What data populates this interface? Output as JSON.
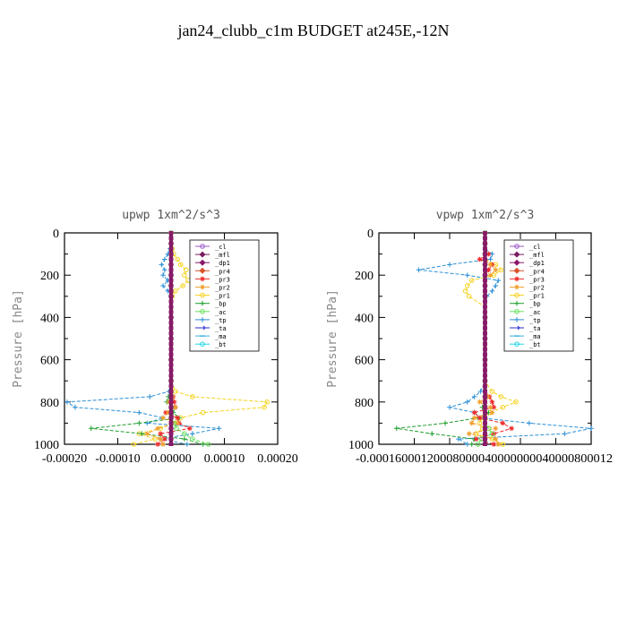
{
  "figure": {
    "title": "jan24_clubb_c1m  BUDGET at245E,-12N"
  },
  "legend_entries": [
    {
      "name": "_cl",
      "color": "#9b59c9",
      "marker": "circle"
    },
    {
      "name": "_mfl",
      "color": "#7b1f5e",
      "marker": "diamond"
    },
    {
      "name": "_dp1",
      "color": "#8b1a6b",
      "marker": "diamond"
    },
    {
      "name": "_pr4",
      "color": "#d9532b",
      "marker": "diamond"
    },
    {
      "name": "_pr3",
      "color": "#ee2b2b",
      "marker": "star"
    },
    {
      "name": "_pr2",
      "color": "#f0a030",
      "marker": "star"
    },
    {
      "name": "_pr1",
      "color": "#f5d21a",
      "marker": "circle"
    },
    {
      "name": "_bp",
      "color": "#1e9e2e",
      "marker": "plus"
    },
    {
      "name": "_ac",
      "color": "#66e05a",
      "marker": "circle"
    },
    {
      "name": "_tp",
      "color": "#2a8fd6",
      "marker": "plus"
    },
    {
      "name": "_ta",
      "color": "#2a2ad6",
      "marker": "arrow"
    },
    {
      "name": "_ma",
      "color": "#3ab0e0",
      "marker": "dash"
    },
    {
      "name": "_bt",
      "color": "#22d6e6",
      "marker": "circle"
    }
  ],
  "chart_data": [
    {
      "type": "line",
      "title": "upwp   1xm^2/s^3",
      "ylabel": "Pressure [hPa]",
      "xlabel": "",
      "xlim": [
        -0.0002,
        0.0002
      ],
      "ylim": [
        1000,
        0
      ],
      "xticks": [
        "-0.00020",
        "-0.00010",
        "0.00000",
        "0.00010",
        "0.00020"
      ],
      "yticks": [
        "0",
        "200",
        "400",
        "600",
        "800",
        "1000"
      ],
      "pressure_levels": [
        0,
        25,
        50,
        75,
        100,
        125,
        150,
        175,
        200,
        225,
        250,
        275,
        300,
        350,
        400,
        450,
        500,
        550,
        600,
        650,
        700,
        750,
        775,
        800,
        825,
        850,
        875,
        900,
        925,
        950,
        975,
        1000
      ],
      "series": [
        {
          "name": "_pr1",
          "values": [
            0,
            0,
            0,
            2e-06,
            5e-06,
            1.2e-05,
            1.8e-05,
            2.8e-05,
            2.5e-05,
            3.2e-05,
            2.2e-05,
            8e-06,
            2e-06,
            0,
            0,
            0,
            0,
            0,
            0,
            0,
            0,
            8e-06,
            4e-05,
            0.00018,
            0.000175,
            6e-05,
            1.8e-05,
            2e-06,
            -2e-05,
            -6e-05,
            -3e-05,
            -7e-05
          ]
        },
        {
          "name": "_tp",
          "values": [
            0,
            0,
            0,
            -2e-06,
            -6e-06,
            -1.2e-05,
            -1.8e-05,
            -1.2e-05,
            -1.5e-05,
            -6e-06,
            -1.5e-05,
            -6e-06,
            0,
            0,
            0,
            0,
            0,
            0,
            0,
            0,
            0,
            -4e-06,
            -4e-05,
            -0.000195,
            -0.00018,
            -6e-05,
            -1.5e-05,
            -4.5e-05,
            9e-05,
            4e-05,
            -2e-05,
            3e-05
          ]
        },
        {
          "name": "_bp",
          "values": [
            0,
            0,
            0,
            0,
            0,
            0,
            0,
            0,
            0,
            0,
            0,
            0,
            0,
            0,
            0,
            0,
            0,
            0,
            0,
            0,
            0,
            0,
            -5e-06,
            -8e-06,
            8e-06,
            4e-06,
            1.5e-05,
            -6e-05,
            -0.00015,
            -5.5e-05,
            2.5e-05,
            6e-05
          ]
        },
        {
          "name": "_pr3",
          "values": [
            0,
            0,
            0,
            0,
            0,
            0,
            0,
            0,
            0,
            0,
            0,
            0,
            0,
            0,
            0,
            0,
            0,
            0,
            0,
            0,
            0,
            0,
            4e-06,
            6e-06,
            8e-06,
            -1e-05,
            1.2e-05,
            1.5e-05,
            3.5e-05,
            -2e-05,
            -1.2e-05,
            -2.5e-05
          ]
        },
        {
          "name": "_pr2",
          "values": [
            0,
            0,
            0,
            0,
            0,
            0,
            0,
            0,
            0,
            0,
            0,
            0,
            0,
            0,
            0,
            0,
            0,
            0,
            0,
            0,
            0,
            0,
            3e-06,
            -4e-06,
            8e-06,
            -5e-06,
            -1.5e-05,
            1.2e-05,
            -2.5e-05,
            -4.5e-05,
            -2e-05,
            -1.5e-05
          ]
        },
        {
          "name": "_cl",
          "values": [
            0,
            0,
            0,
            0,
            0,
            0,
            0,
            0,
            0,
            0,
            0,
            0,
            0,
            0,
            0,
            0,
            0,
            0,
            0,
            0,
            0,
            0,
            0,
            0,
            0,
            0,
            0,
            0,
            0,
            0,
            0,
            0
          ]
        },
        {
          "name": "_ac",
          "values": [
            0,
            0,
            0,
            0,
            0,
            0,
            0,
            0,
            0,
            0,
            0,
            0,
            0,
            0,
            0,
            0,
            0,
            0,
            0,
            0,
            0,
            0,
            0,
            0,
            0,
            0,
            0,
            5e-06,
            1e-05,
            2.5e-05,
            4e-05,
            7e-05
          ]
        }
      ]
    },
    {
      "type": "line",
      "title": "vpwp   1xm^2/s^3",
      "ylabel": "Pressure [hPa]",
      "xlabel": "",
      "xlim": [
        -0.00012,
        0.00012
      ],
      "ylim": [
        1000,
        0
      ],
      "xticks": [
        "-0.00012",
        "-0.00008",
        "-0.00004",
        "0.00000",
        "0.00004",
        "0.00008",
        "0.00012"
      ],
      "xticks_rendered": "-0.00016000120008000040000000040000800012",
      "yticks": [
        "0",
        "200",
        "400",
        "600",
        "800",
        "1000"
      ],
      "pressure_levels": [
        0,
        25,
        50,
        75,
        100,
        125,
        150,
        175,
        200,
        225,
        250,
        275,
        300,
        350,
        400,
        450,
        500,
        550,
        600,
        650,
        700,
        750,
        775,
        800,
        825,
        850,
        875,
        900,
        925,
        950,
        975,
        1000
      ],
      "series": [
        {
          "name": "_tp",
          "values": [
            0,
            0,
            0,
            0,
            8e-06,
            6e-06,
            -4e-05,
            -7.5e-05,
            -2e-05,
            1.5e-05,
            1.2e-05,
            8e-06,
            2e-06,
            0,
            0,
            0,
            0,
            0,
            0,
            0,
            0,
            -5e-06,
            -1.2e-05,
            -2e-05,
            -4e-05,
            -1.2e-05,
            -5e-06,
            5e-05,
            0.00012,
            9e-05,
            -3e-05,
            -2e-05
          ]
        },
        {
          "name": "_pr1",
          "values": [
            0,
            0,
            0,
            0,
            0,
            0,
            1.2e-05,
            1.8e-05,
            1e-05,
            -1.5e-05,
            -2e-05,
            -2.2e-05,
            -1.8e-05,
            0,
            0,
            0,
            0,
            0,
            0,
            0,
            0,
            8e-06,
            1.8e-05,
            3.5e-05,
            2e-05,
            6e-06,
            -4e-06,
            -6e-06,
            -3e-06,
            -1e-05,
            8e-06,
            2e-05
          ]
        },
        {
          "name": "_bp",
          "values": [
            0,
            0,
            0,
            0,
            0,
            0,
            0,
            0,
            0,
            0,
            0,
            0,
            0,
            0,
            0,
            0,
            0,
            0,
            0,
            0,
            0,
            0,
            0,
            0,
            -3e-06,
            4e-06,
            -8e-06,
            -4.5e-05,
            -0.0001,
            -6e-05,
            -1.2e-05,
            -1.5e-05
          ]
        },
        {
          "name": "_pr3",
          "values": [
            0,
            0,
            0,
            0,
            4e-06,
            -6e-06,
            8e-06,
            4e-06,
            0,
            0,
            0,
            0,
            0,
            0,
            0,
            0,
            0,
            0,
            0,
            0,
            0,
            0,
            5e-06,
            8e-06,
            1e-05,
            -1.2e-05,
            -6e-06,
            2e-05,
            3e-05,
            1e-05,
            -1e-05,
            1e-05
          ]
        },
        {
          "name": "_pr2",
          "values": [
            0,
            0,
            0,
            0,
            0,
            0,
            6e-06,
            1.2e-05,
            6e-06,
            0,
            0,
            0,
            0,
            0,
            0,
            0,
            0,
            0,
            0,
            0,
            0,
            0,
            3e-06,
            -6e-06,
            6e-06,
            8e-06,
            -1.2e-05,
            -1.5e-05,
            1.2e-05,
            -1.8e-05,
            1.2e-05,
            1.5e-05
          ]
        },
        {
          "name": "_cl",
          "values": [
            0,
            0,
            0,
            0,
            0,
            0,
            0,
            0,
            0,
            0,
            0,
            0,
            0,
            0,
            0,
            0,
            0,
            0,
            0,
            0,
            0,
            0,
            0,
            0,
            0,
            0,
            0,
            0,
            0,
            0,
            0,
            0
          ]
        },
        {
          "name": "_ac",
          "values": [
            0,
            0,
            0,
            0,
            0,
            0,
            0,
            0,
            0,
            0,
            0,
            0,
            0,
            0,
            0,
            0,
            0,
            0,
            0,
            0,
            0,
            0,
            0,
            0,
            0,
            0,
            0,
            0,
            4e-06,
            8e-06,
            -4e-06,
            -8e-06
          ]
        }
      ]
    }
  ]
}
